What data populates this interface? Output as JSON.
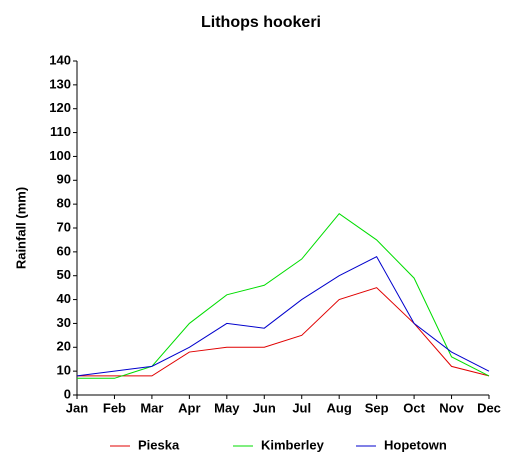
{
  "chart_data": {
    "type": "line",
    "title": "Lithops hookeri",
    "y_label": "Rainfall (mm)",
    "categories": [
      "Jan",
      "Feb",
      "Mar",
      "Apr",
      "May",
      "Jun",
      "Jul",
      "Aug",
      "Sep",
      "Oct",
      "Nov",
      "Dec"
    ],
    "series": [
      {
        "name": "Pieska",
        "color": "#e00000",
        "values": [
          8,
          8,
          8,
          18,
          20,
          20,
          25,
          40,
          45,
          30,
          12,
          8
        ]
      },
      {
        "name": "Kimberley",
        "color": "#00dd00",
        "values": [
          7,
          7,
          12,
          30,
          42,
          46,
          57,
          76,
          65,
          49,
          16,
          8
        ]
      },
      {
        "name": "Hopetown",
        "color": "#0000cc",
        "values": [
          8,
          10,
          12,
          20,
          30,
          28,
          40,
          50,
          58,
          30,
          18,
          10
        ]
      }
    ],
    "ylim": [
      0,
      140
    ],
    "yticks": [
      0,
      10,
      20,
      30,
      40,
      50,
      60,
      70,
      80,
      90,
      100,
      110,
      120,
      130,
      140
    ],
    "grid": false,
    "legend": "bottom"
  }
}
